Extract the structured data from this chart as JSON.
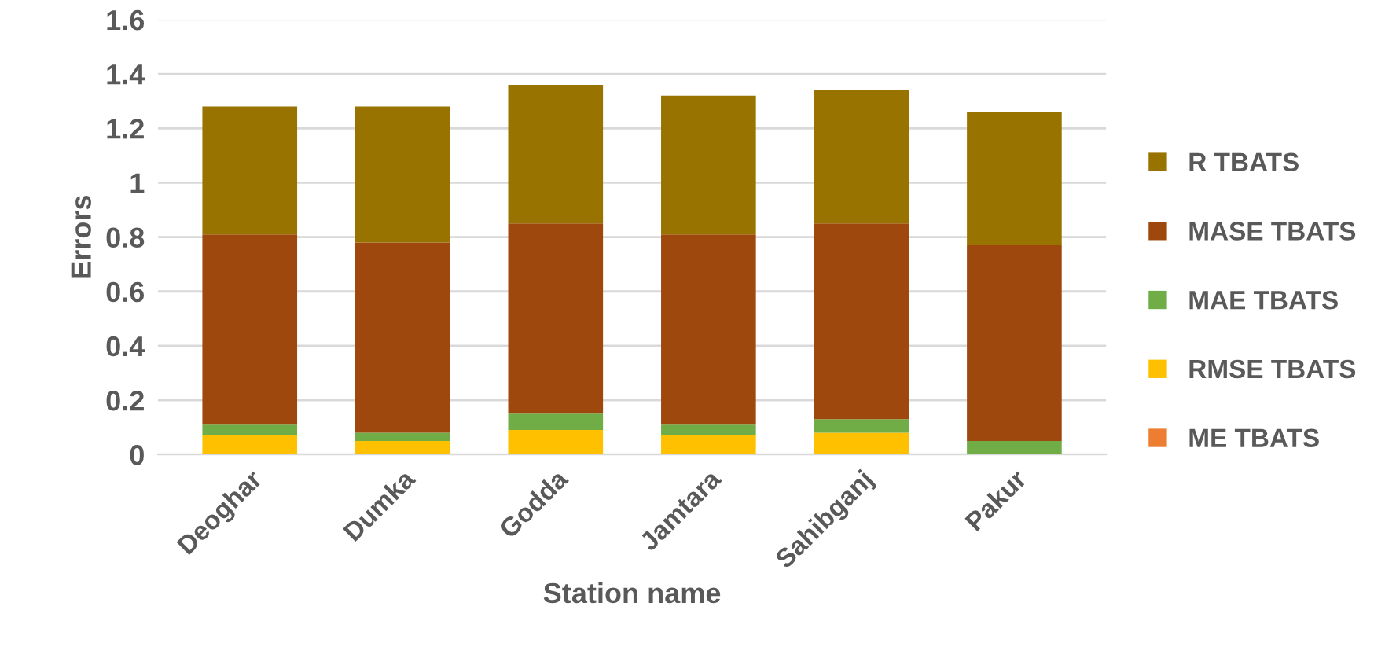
{
  "chart_data": {
    "type": "bar",
    "stacked": true,
    "xlabel": "Station name",
    "ylabel": "Errors",
    "categories": [
      "Deoghar",
      "Dumka",
      "Godda",
      "Jamtara",
      "Sahibganj",
      "Pakur"
    ],
    "series": [
      {
        "name": "ME TBATS",
        "color": "#ed7d31",
        "values": [
          0,
          0,
          0,
          0,
          0,
          0
        ]
      },
      {
        "name": "RMSE TBATS",
        "color": "#ffc000",
        "values": [
          0.07,
          0.05,
          0.09,
          0.07,
          0.08,
          0
        ]
      },
      {
        "name": "MAE TBATS",
        "color": "#70ad47",
        "values": [
          0.04,
          0.03,
          0.06,
          0.04,
          0.05,
          0.05
        ]
      },
      {
        "name": "MASE TBATS",
        "color": "#9e480e",
        "values": [
          0.7,
          0.7,
          0.7,
          0.7,
          0.72,
          0.72
        ]
      },
      {
        "name": "R TBATS",
        "color": "#997300",
        "values": [
          0.47,
          0.5,
          0.51,
          0.51,
          0.49,
          0.49
        ]
      }
    ],
    "ylim": [
      0,
      1.6
    ],
    "yticks": [
      0,
      0.2,
      0.4,
      0.6,
      0.8,
      1,
      1.2,
      1.4,
      1.6
    ],
    "grid": "y",
    "legend": "right"
  }
}
